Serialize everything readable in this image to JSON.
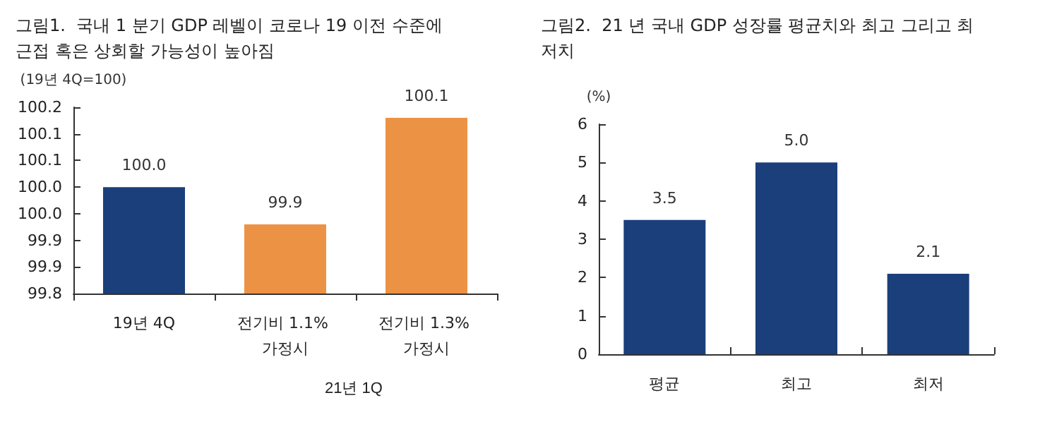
{
  "chart_data": [
    {
      "type": "bar",
      "title": "그림1.  국내 1 분기 GDP 레벨이 코로나 19 이전 수준에 근접 혹은 상회할 가능성이 높아짐",
      "ylabel": "(19년 4Q=100)",
      "categories": [
        "19년 4Q",
        "전기비 1.1% 가정시",
        "전기비 1.3% 가정시"
      ],
      "values": [
        100.0,
        99.93,
        100.13
      ],
      "colors": [
        "#1a3f7a",
        "#ec9244",
        "#ec9244"
      ],
      "value_labels": [
        "100.0",
        "99.9",
        "100.1"
      ],
      "ylim": [
        99.8,
        100.15
      ],
      "yticks": [
        99.8,
        {
          "value": 99.85,
          "label": "99.9"
        },
        99.9,
        {
          "value": 99.95,
          "label": "100.0"
        },
        {
          "value": 100.0,
          "label": "100.0"
        },
        {
          "value": 100.05,
          "label": "100.1"
        },
        100.1,
        {
          "value": 100.15,
          "label": "100.2"
        }
      ],
      "annotations": [
        "21년 1Q"
      ],
      "grid": false
    },
    {
      "type": "bar",
      "title": "그림2.  21 년 국내 GDP 성장률 평균치와 최고 그리고 최저치",
      "ylabel": "(%)",
      "categories": [
        "평균",
        "최고",
        "최저"
      ],
      "values": [
        3.5,
        5.0,
        2.1
      ],
      "color": "#1a3f7a",
      "value_labels": [
        "3.5",
        "5.0",
        "2.1"
      ],
      "ylim": [
        0,
        6
      ],
      "yticks": [
        0,
        1,
        2,
        3,
        4,
        5,
        6
      ],
      "grid": false
    }
  ]
}
